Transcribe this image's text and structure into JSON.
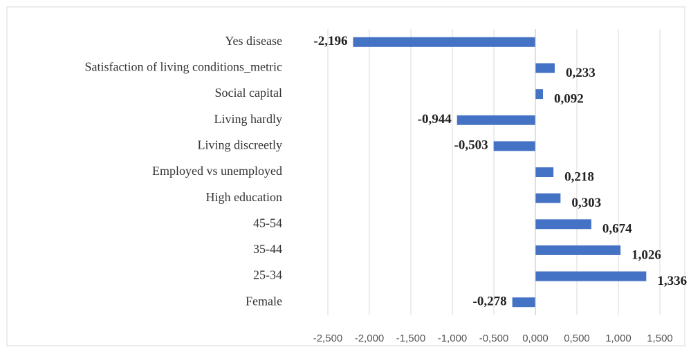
{
  "chart_data": {
    "type": "hbar",
    "categories": [
      "Yes disease",
      "Satisfaction of living conditions_metric",
      "Social capital",
      "Living hardly",
      "Living discreetly",
      "Employed vs unemployed",
      "High education",
      "45-54",
      "35-44",
      "25-34",
      "Female"
    ],
    "values": [
      -2.196,
      0.233,
      0.092,
      -0.944,
      -0.503,
      0.218,
      0.303,
      0.674,
      1.026,
      1.336,
      -0.278
    ],
    "value_labels": [
      "-2,196",
      "0,233",
      "0,092",
      "-0,944",
      "-0,503",
      "0,218",
      "0,303",
      "0,674",
      "1,026",
      "1,336",
      "-0,278"
    ],
    "color": "#4472c4",
    "xlim": [
      -2.5,
      1.5
    ],
    "xticks": [
      {
        "value": -2.5,
        "label": "-2,500"
      },
      {
        "value": -2.0,
        "label": "-2,000"
      },
      {
        "value": -1.5,
        "label": "-1,500"
      },
      {
        "value": -1.0,
        "label": "-1,000"
      },
      {
        "value": -0.5,
        "label": "-0,500"
      },
      {
        "value": 0,
        "label": "0,000"
      },
      {
        "value": 0.5,
        "label": "0,500"
      },
      {
        "value": 1.0,
        "label": "1,000"
      },
      {
        "value": 1.5,
        "label": "1,500"
      }
    ],
    "grid": true
  }
}
